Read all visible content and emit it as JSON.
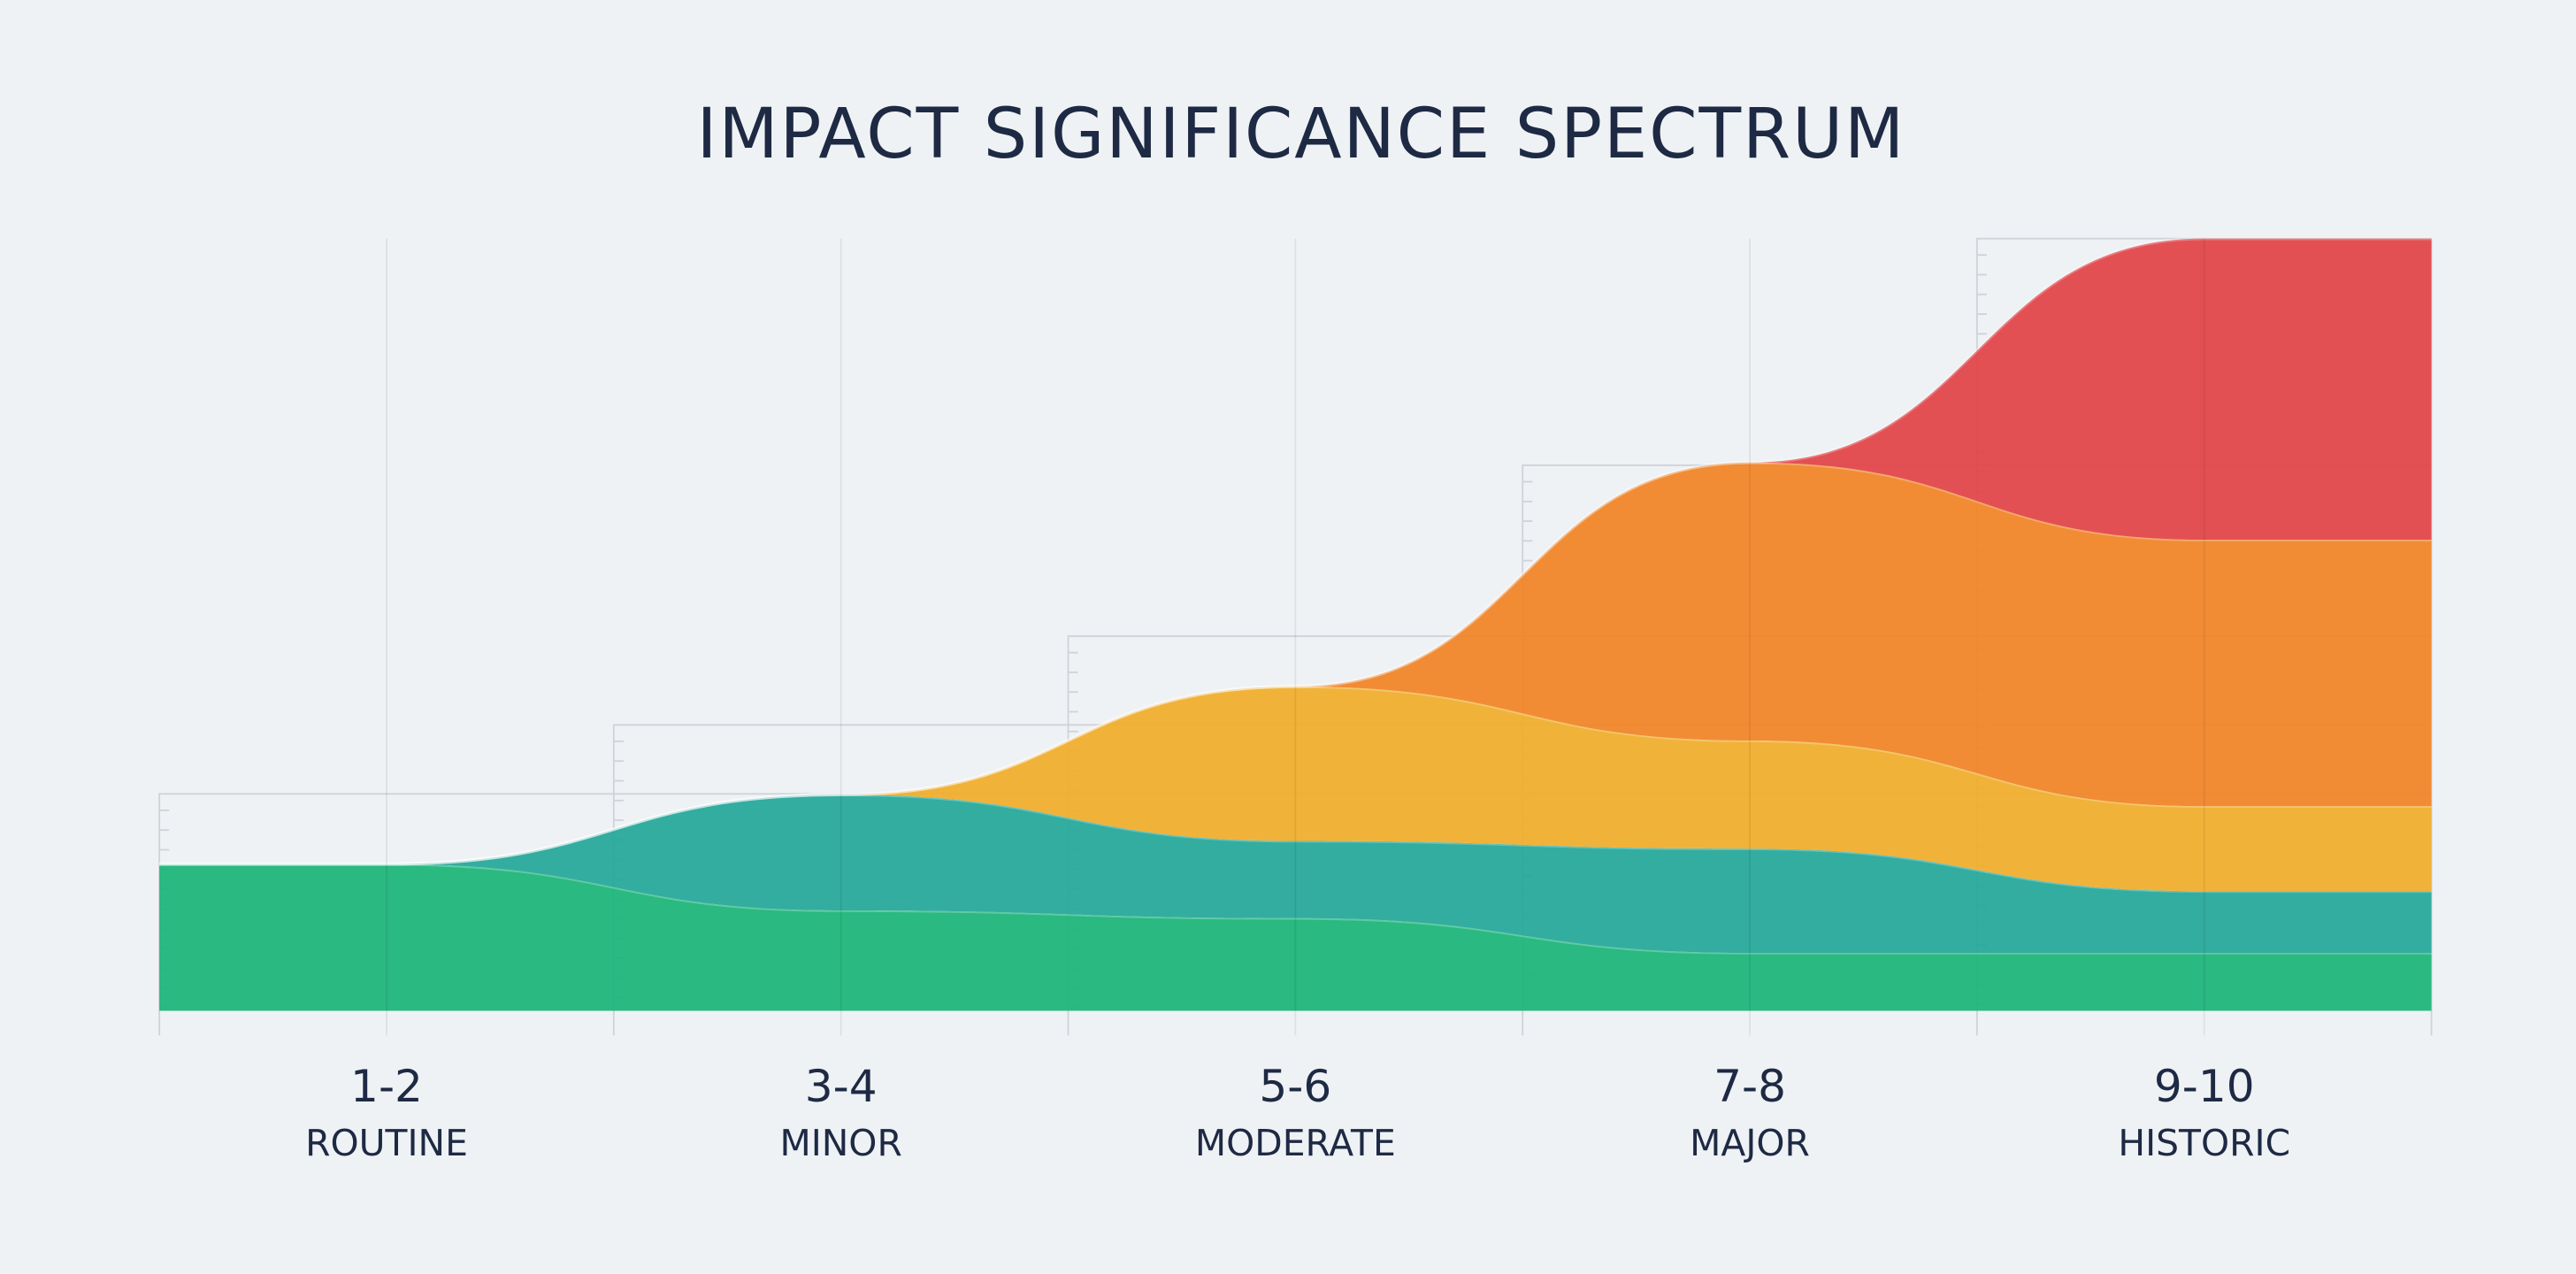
{
  "chart_data": {
    "type": "area",
    "stacked": true,
    "title": "IMPACT SIGNIFICANCE SPECTRUM",
    "categories": [
      "1-2",
      "3-4",
      "5-6",
      "7-8",
      "9-10"
    ],
    "sublabels": [
      "ROUTINE",
      "MINOR",
      "MODERATE",
      "MAJOR",
      "HISTORIC"
    ],
    "ylim": [
      0,
      100
    ],
    "series": [
      {
        "color": "#1db57a",
        "values": [
          19,
          13,
          12,
          7.5,
          7.5
        ]
      },
      {
        "color": "#27a99b",
        "values": [
          0,
          15,
          10,
          13.5,
          8
        ]
      },
      {
        "color": "#f0ae2e",
        "values": [
          0,
          0,
          20,
          14,
          11
        ]
      },
      {
        "color": "#f0862a",
        "values": [
          0,
          0,
          0,
          36,
          34.5
        ]
      },
      {
        "color": "#e2474b",
        "values": [
          0,
          0,
          0,
          0,
          39
        ]
      }
    ]
  }
}
